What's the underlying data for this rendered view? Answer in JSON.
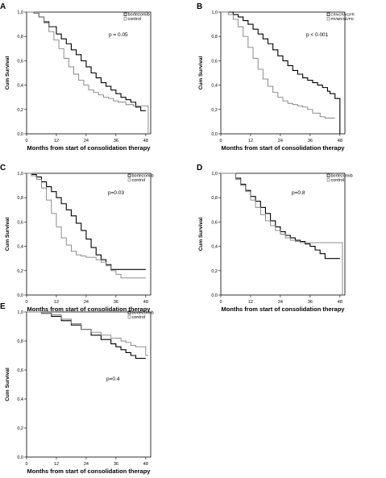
{
  "chart_data": [
    {
      "type": "line",
      "panel": "A",
      "xlabel": "Months from start of consolidation therapy",
      "ylabel": "Cum Survival",
      "xticks": [
        "0",
        "12",
        "24",
        "36",
        "48"
      ],
      "yticks": [
        "0,0",
        "0,2",
        "0,4",
        "0,6",
        "0,8",
        "1,0"
      ],
      "xlim": [
        0,
        50
      ],
      "ylim": [
        0,
        1
      ],
      "annotation": "p = 0.05",
      "legend": "top-right",
      "series": [
        {
          "name": "bortezomib",
          "color": "#000000",
          "width": 1.1,
          "x": [
            0,
            3,
            5,
            7,
            9,
            12,
            14,
            16,
            18,
            20,
            22,
            24,
            26,
            28,
            30,
            32,
            34,
            36,
            38,
            40,
            42,
            44,
            46,
            48
          ],
          "y": [
            1.0,
            0.99,
            0.96,
            0.92,
            0.88,
            0.82,
            0.78,
            0.74,
            0.69,
            0.65,
            0.6,
            0.55,
            0.5,
            0.46,
            0.42,
            0.39,
            0.36,
            0.33,
            0.3,
            0.28,
            0.26,
            0.22,
            0.19,
            0.19
          ]
        },
        {
          "name": "control",
          "color": "#808080",
          "width": 0.9,
          "x": [
            0,
            3,
            5,
            7,
            9,
            11,
            13,
            15,
            17,
            19,
            21,
            23,
            25,
            27,
            29,
            31,
            33,
            35,
            37,
            40,
            43,
            46,
            48,
            49,
            49
          ],
          "y": [
            1.0,
            0.99,
            0.96,
            0.91,
            0.84,
            0.77,
            0.7,
            0.62,
            0.55,
            0.49,
            0.44,
            0.4,
            0.36,
            0.34,
            0.32,
            0.3,
            0.29,
            0.27,
            0.26,
            0.24,
            0.23,
            0.23,
            0.23,
            0.23,
            0.0
          ]
        }
      ]
    },
    {
      "type": "line",
      "panel": "B",
      "xlabel": "Months from start of consolidation therapy",
      "ylabel": "Cum Survival",
      "xticks": [
        "0",
        "12",
        "24",
        "36",
        "48"
      ],
      "yticks": [
        "0,0",
        "0,2",
        "0,4",
        "0,6",
        "0,8",
        "1,0"
      ],
      "xlim": [
        0,
        50
      ],
      "ylim": [
        0,
        1
      ],
      "annotation": "p < 0.001",
      "legend": "top-right",
      "series": [
        {
          "name": "CR/nCR/VGPR",
          "color": "#000000",
          "width": 1.1,
          "x": [
            0,
            3,
            5,
            7,
            9,
            11,
            13,
            15,
            17,
            19,
            21,
            23,
            25,
            27,
            29,
            31,
            33,
            35,
            37,
            39,
            41,
            43,
            44,
            46,
            48,
            48
          ],
          "y": [
            1.0,
            1.0,
            0.98,
            0.96,
            0.93,
            0.9,
            0.86,
            0.82,
            0.78,
            0.74,
            0.69,
            0.64,
            0.6,
            0.56,
            0.52,
            0.49,
            0.46,
            0.44,
            0.42,
            0.4,
            0.38,
            0.35,
            0.33,
            0.29,
            0.29,
            0.0
          ]
        },
        {
          "name": "PR/MR/SD/PD",
          "color": "#808080",
          "width": 0.9,
          "x": [
            0,
            3,
            5,
            7,
            9,
            11,
            13,
            15,
            17,
            19,
            21,
            23,
            25,
            27,
            29,
            31,
            33,
            35,
            37,
            40,
            42,
            44,
            46
          ],
          "y": [
            1.0,
            0.98,
            0.94,
            0.88,
            0.8,
            0.71,
            0.62,
            0.53,
            0.45,
            0.39,
            0.34,
            0.3,
            0.27,
            0.25,
            0.24,
            0.23,
            0.22,
            0.2,
            0.17,
            0.14,
            0.13,
            0.13,
            0.13
          ]
        }
      ]
    },
    {
      "type": "line",
      "panel": "C",
      "xlabel": "Months from start of consolidation therapy",
      "ylabel": "Cum Survival",
      "xticks": [
        "0",
        "12",
        "24",
        "36",
        "48"
      ],
      "yticks": [
        "0,0",
        "0,2",
        "0,4",
        "0,6",
        "0,8",
        "1,0"
      ],
      "xlim": [
        0,
        50
      ],
      "ylim": [
        0,
        1
      ],
      "annotation": "p=0.03",
      "legend": "top-right",
      "series": [
        {
          "name": "bortezomib",
          "color": "#000000",
          "width": 1.1,
          "x": [
            0,
            2,
            4,
            6,
            8,
            10,
            12,
            14,
            16,
            18,
            20,
            22,
            24,
            26,
            28,
            30,
            32,
            34,
            36,
            40,
            44,
            48
          ],
          "y": [
            1.0,
            0.99,
            0.97,
            0.93,
            0.89,
            0.85,
            0.8,
            0.75,
            0.7,
            0.65,
            0.59,
            0.53,
            0.46,
            0.39,
            0.33,
            0.29,
            0.25,
            0.21,
            0.21,
            0.21,
            0.21,
            0.21
          ]
        },
        {
          "name": "control",
          "color": "#808080",
          "width": 0.9,
          "x": [
            0,
            2,
            4,
            6,
            8,
            10,
            12,
            14,
            16,
            18,
            20,
            22,
            24,
            26,
            28,
            30,
            32,
            34,
            36,
            38,
            40,
            44,
            48
          ],
          "y": [
            1.0,
            0.98,
            0.95,
            0.88,
            0.78,
            0.67,
            0.56,
            0.47,
            0.41,
            0.36,
            0.33,
            0.32,
            0.31,
            0.31,
            0.29,
            0.27,
            0.24,
            0.2,
            0.17,
            0.14,
            0.14,
            0.14,
            0.14
          ]
        }
      ]
    },
    {
      "type": "line",
      "panel": "D",
      "xlabel": "Months from start of consolidation therapy",
      "ylabel": "Cum Survival",
      "xticks": [
        "0",
        "12",
        "24",
        "36",
        "48"
      ],
      "yticks": [
        "0,0",
        "0,2",
        "0,4",
        "0,6",
        "0,8",
        "1,0"
      ],
      "xlim": [
        0,
        50
      ],
      "ylim": [
        0,
        1
      ],
      "annotation": "p=0.8",
      "legend": "top-right",
      "series": [
        {
          "name": "bortezomib",
          "color": "#000000",
          "width": 1.1,
          "x": [
            0,
            4,
            6,
            8,
            10,
            12,
            14,
            16,
            18,
            20,
            22,
            24,
            26,
            28,
            30,
            32,
            34,
            36,
            38,
            40,
            42,
            46,
            48
          ],
          "y": [
            1.0,
            1.0,
            0.96,
            0.91,
            0.86,
            0.81,
            0.77,
            0.72,
            0.67,
            0.61,
            0.56,
            0.52,
            0.49,
            0.47,
            0.45,
            0.44,
            0.42,
            0.4,
            0.37,
            0.34,
            0.3,
            0.3,
            0.3
          ]
        },
        {
          "name": "control",
          "color": "#808080",
          "width": 0.9,
          "x": [
            0,
            4,
            6,
            8,
            10,
            12,
            14,
            16,
            18,
            20,
            22,
            24,
            26,
            28,
            30,
            32,
            34,
            36,
            40,
            44,
            48,
            49,
            49
          ],
          "y": [
            1.0,
            1.0,
            0.95,
            0.9,
            0.85,
            0.78,
            0.72,
            0.66,
            0.61,
            0.57,
            0.53,
            0.5,
            0.47,
            0.45,
            0.44,
            0.43,
            0.43,
            0.43,
            0.43,
            0.43,
            0.43,
            0.43,
            0.0
          ]
        }
      ]
    },
    {
      "type": "line",
      "panel": "E",
      "xlabel": "Months from start of consolidation therapy",
      "ylabel": "Cum Survival",
      "xticks": [
        "0",
        "12",
        "24",
        "36",
        "48"
      ],
      "yticks": [
        "0,0",
        "0,2",
        "0,4",
        "0,6",
        "0,8",
        "1,0"
      ],
      "xlim": [
        0,
        50
      ],
      "ylim": [
        0,
        1
      ],
      "annotation": "p=0.4",
      "legend": "top-right",
      "series": [
        {
          "name": "bortezomib",
          "color": "#000000",
          "width": 1.1,
          "x": [
            0,
            6,
            10,
            14,
            18,
            22,
            26,
            30,
            34,
            36,
            38,
            40,
            42,
            44,
            46,
            48
          ],
          "y": [
            1.0,
            0.99,
            0.97,
            0.94,
            0.91,
            0.88,
            0.84,
            0.81,
            0.78,
            0.76,
            0.74,
            0.72,
            0.7,
            0.68,
            0.68,
            0.68
          ]
        },
        {
          "name": "control",
          "color": "#808080",
          "width": 0.9,
          "x": [
            0,
            6,
            10,
            14,
            18,
            22,
            26,
            30,
            34,
            38,
            40,
            42,
            44,
            46,
            48,
            49
          ],
          "y": [
            1.0,
            0.99,
            0.98,
            0.95,
            0.92,
            0.88,
            0.86,
            0.84,
            0.82,
            0.8,
            0.79,
            0.77,
            0.76,
            0.76,
            0.7,
            0.7
          ]
        }
      ]
    }
  ]
}
